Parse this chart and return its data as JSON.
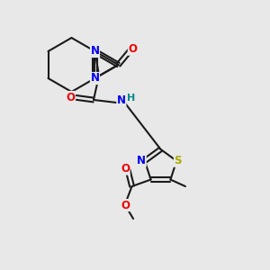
{
  "bg": "#e8e8e8",
  "bond_color": "#1a1a1a",
  "bw": 1.5,
  "dbo": 0.08,
  "colors": {
    "N": "#0000ee",
    "O": "#ee0000",
    "S": "#aaaa00",
    "H": "#008888",
    "C": "#1a1a1a"
  },
  "fs": 8.5
}
